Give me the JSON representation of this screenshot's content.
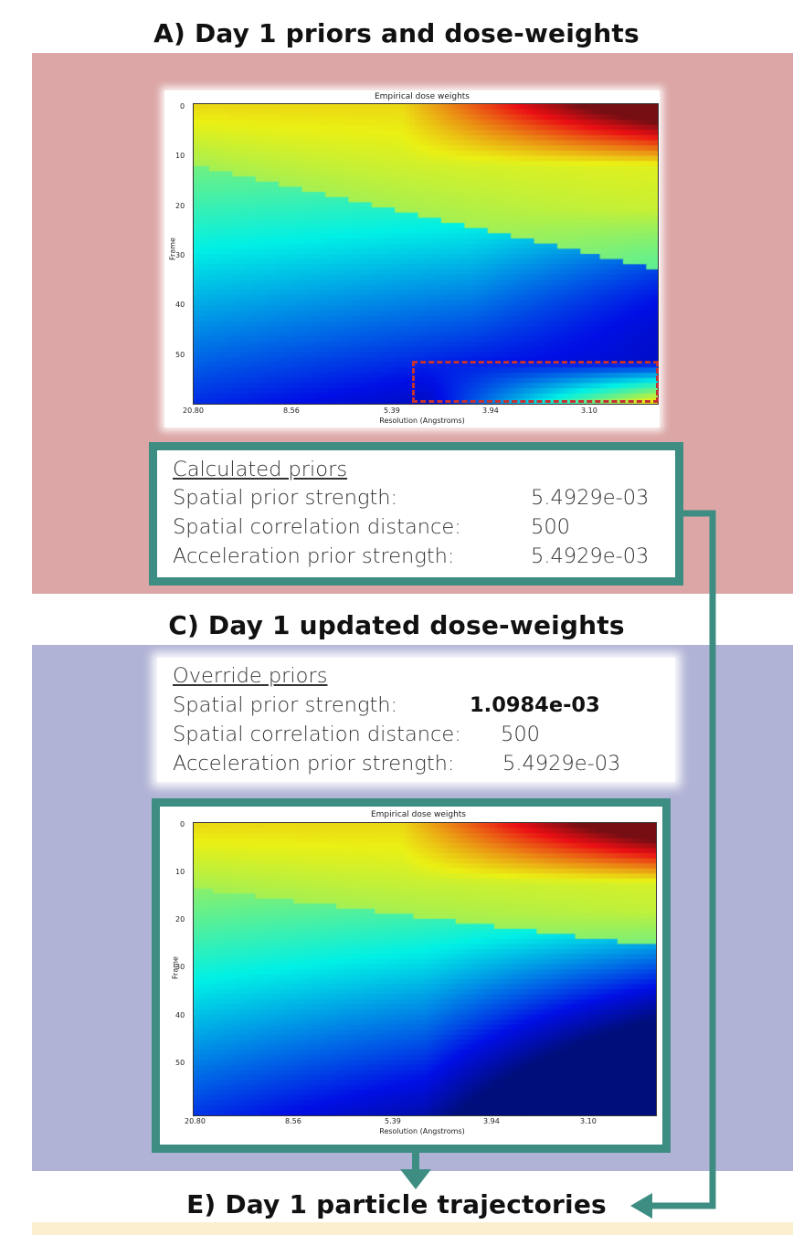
{
  "sections": {
    "a_title": "A) Day 1 priors and dose-weights",
    "c_title": "C) Day 1 updated dose-weights",
    "e_title": "E) Day 1 particle trajectories"
  },
  "plot_top": {
    "title": "Empirical dose weights",
    "ylabel": "Frame",
    "xlabel": "Resolution (Angstroms)",
    "yticks": [
      "0",
      "10",
      "20",
      "30",
      "40",
      "50"
    ],
    "xticks": [
      "20.80",
      "8.56",
      "5.39",
      "3.94",
      "3.10"
    ]
  },
  "plot_bottom": {
    "title": "Empirical dose weights",
    "ylabel": "Frame",
    "xlabel": "Resolution (Angstroms)",
    "yticks": [
      "0",
      "10",
      "20",
      "30",
      "40",
      "50"
    ],
    "xticks": [
      "20.80",
      "8.56",
      "5.39",
      "3.94",
      "3.10"
    ]
  },
  "calculated": {
    "heading": "Calculated priors",
    "r1_label": "Spatial prior strength:",
    "r1_value": "5.4929e-03",
    "r2_label": "Spatial correlation distance:",
    "r2_value": "500",
    "r3_label": "Acceleration prior strength:",
    "r3_value": "5.4929e-03"
  },
  "override": {
    "heading": "Override priors",
    "r1_label": "Spatial prior strength:",
    "r1_value": "1.0984e-03",
    "r2_label": "Spatial correlation distance:",
    "r2_value": "500",
    "r3_label": "Acceleration prior strength:",
    "r3_value": "5.4929e-03"
  },
  "colors": {
    "panel_a": "#dba6a5",
    "panel_c": "#b1b3d6",
    "panel_e": "#fcefd0",
    "teal": "#3d8d82",
    "highlight": "#c23233"
  }
}
